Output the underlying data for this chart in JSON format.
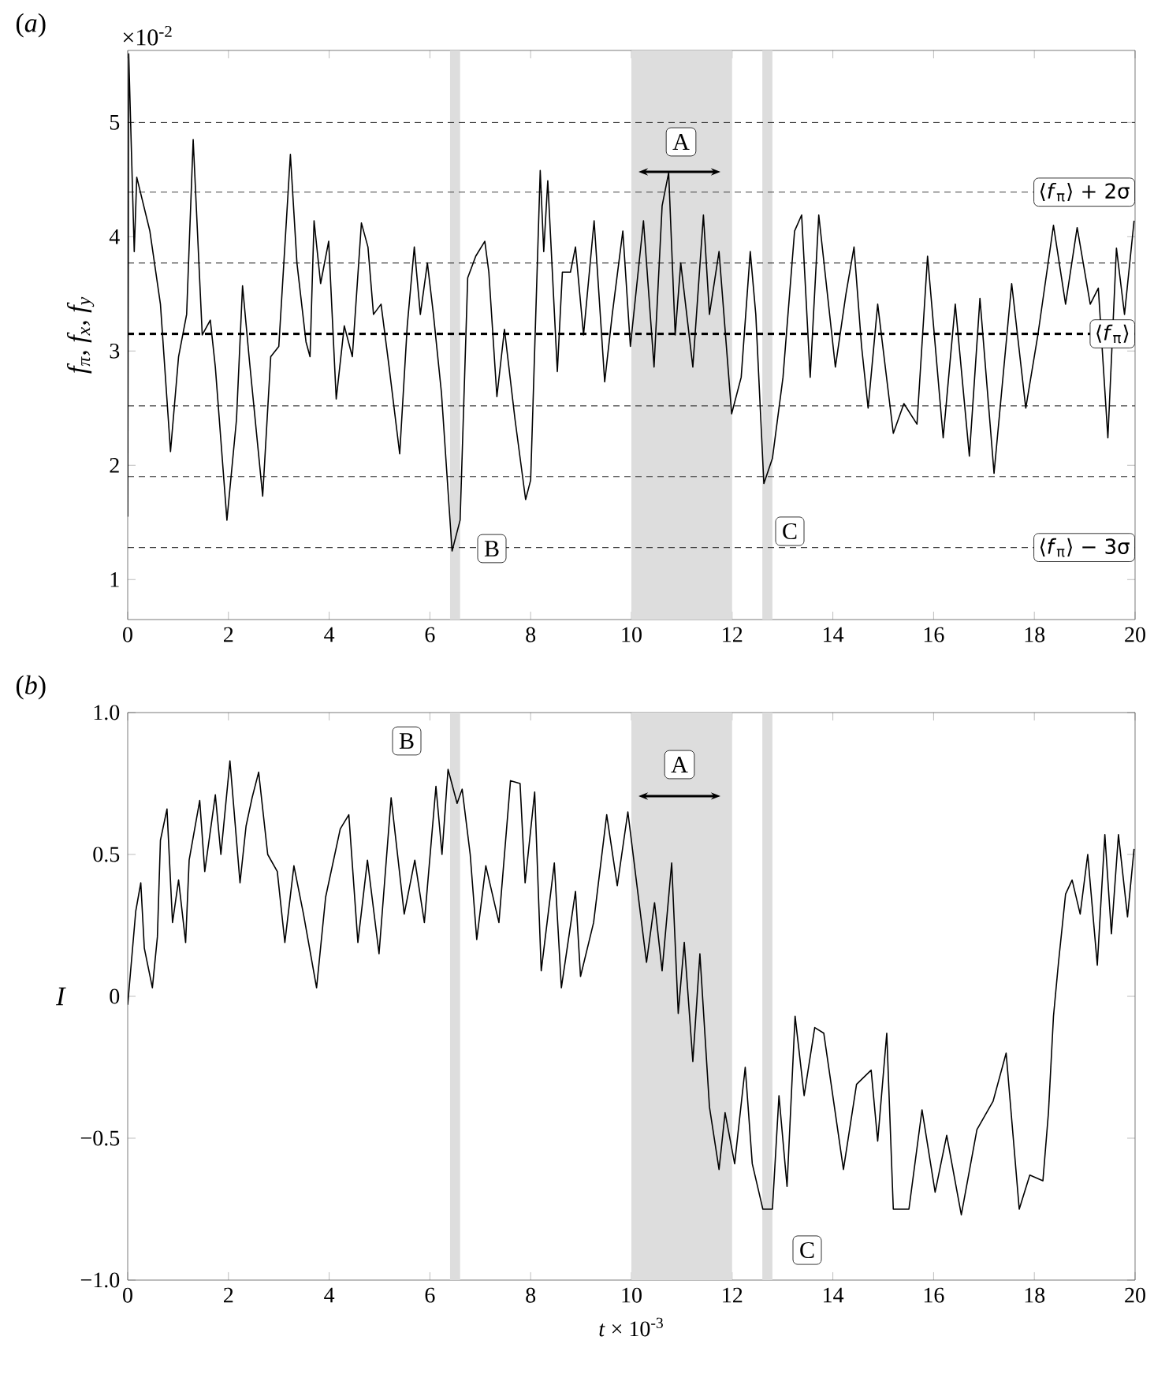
{
  "chart_data": [
    {
      "type": "line",
      "title": "(*a*)",
      "ylabel": "*f*$_{π}$, *f*$_{x}$, *f*$_{y}$",
      "annotations": [
        "×10$^{-2}$",
        "A",
        "B",
        "C"
      ],
      "x": [
        0,
        0.02,
        0.13,
        0.18,
        0.44,
        0.65,
        0.85,
        1.01,
        1.17,
        1.3,
        1.48,
        1.64,
        1.74,
        1.97,
        2.16,
        2.28,
        2.42,
        2.68,
        2.84,
        3.0,
        3.23,
        3.36,
        3.54,
        3.62,
        3.7,
        3.83,
        3.99,
        4.14,
        4.3,
        4.46,
        4.64,
        4.77,
        4.88,
        5.03,
        5.19,
        5.4,
        5.55,
        5.69,
        5.81,
        5.95,
        6.07,
        6.23,
        6.44,
        6.6,
        6.75,
        6.91,
        7.09,
        7.17,
        7.33,
        7.48,
        7.69,
        7.9,
        8.0,
        8.19,
        8.26,
        8.34,
        8.53,
        8.63,
        8.79,
        8.89,
        9.05,
        9.26,
        9.47,
        9.62,
        9.83,
        9.98,
        10.24,
        10.45,
        10.61,
        10.74,
        10.87,
        10.98,
        11.22,
        11.43,
        11.55,
        11.74,
        11.99,
        12.18,
        12.36,
        12.47,
        12.63,
        12.8,
        13.01,
        13.24,
        13.38,
        13.55,
        13.72,
        14.05,
        14.26,
        14.42,
        14.57,
        14.7,
        14.89,
        15.2,
        15.41,
        15.67,
        15.88,
        16.19,
        16.43,
        16.71,
        16.92,
        17.2,
        17.55,
        17.83,
        18.07,
        18.38,
        18.62,
        18.85,
        19.11,
        19.27,
        19.46,
        19.63,
        19.79,
        19.98
      ],
      "series": [
        {
          "color": "#000000",
          "values": [
            1.55,
            5.6,
            3.87,
            4.52,
            4.05,
            3.41,
            2.12,
            2.95,
            3.32,
            4.85,
            3.14,
            3.27,
            2.86,
            1.52,
            2.4,
            3.57,
            2.9,
            1.73,
            2.95,
            3.04,
            4.72,
            3.77,
            3.08,
            2.95,
            4.14,
            3.59,
            3.96,
            2.58,
            3.22,
            2.95,
            4.12,
            3.91,
            3.32,
            3.41,
            2.86,
            2.1,
            3.22,
            3.91,
            3.32,
            3.77,
            3.32,
            2.63,
            1.25,
            1.52,
            3.64,
            3.83,
            3.96,
            3.69,
            2.6,
            3.19,
            2.4,
            1.7,
            1.87,
            4.58,
            3.87,
            4.49,
            2.82,
            3.69,
            3.69,
            3.91,
            3.14,
            4.14,
            2.73,
            3.32,
            4.05,
            3.04,
            4.14,
            2.86,
            4.27,
            4.56,
            3.14,
            3.77,
            2.86,
            4.19,
            3.32,
            3.87,
            2.45,
            2.77,
            3.87,
            3.32,
            1.84,
            2.06,
            2.77,
            4.05,
            4.19,
            2.77,
            4.19,
            2.86,
            3.5,
            3.91,
            3.04,
            2.5,
            3.41,
            2.28,
            2.54,
            2.36,
            3.83,
            2.24,
            3.41,
            2.08,
            3.46,
            1.93,
            3.59,
            2.5,
            3.14,
            4.1,
            3.41,
            4.08,
            3.41,
            3.55,
            2.24,
            3.9,
            3.32,
            4.14
          ]
        }
      ],
      "xlim": [
        0,
        20
      ],
      "xticks": [
        0,
        2,
        4,
        6,
        8,
        10,
        12,
        14,
        16,
        18,
        20
      ],
      "ylim": [
        0.65,
        5.63
      ],
      "yticks": [
        1,
        2,
        3,
        4,
        5
      ],
      "marker": "none",
      "line_style": "solid",
      "ref_lines": [
        {
          "axis": "y",
          "value": 5.0,
          "line_style": "dashed"
        },
        {
          "axis": "y",
          "value": 4.39,
          "label": "⟨*f*$_{π}$⟩ + 2σ",
          "line_style": "dashed"
        },
        {
          "axis": "y",
          "value": 3.77,
          "line_style": "dashed"
        },
        {
          "axis": "y",
          "value": 3.15,
          "label": "⟨*f*$_{π}$⟩",
          "line_style": "dashed",
          "color": "#000000"
        },
        {
          "axis": "y",
          "value": 2.52,
          "line_style": "dashed"
        },
        {
          "axis": "y",
          "value": 1.9,
          "line_style": "dashed"
        },
        {
          "axis": "y",
          "value": 1.28,
          "label": "⟨*f*$_{π}$⟩ − 3σ",
          "line_style": "dashed"
        }
      ],
      "bands": [
        {
          "axis": "x",
          "from": 6.4,
          "to": 6.6,
          "color": "#dddddd"
        },
        {
          "axis": "x",
          "from": 10.0,
          "to": 12.0,
          "color": "#dddddd"
        },
        {
          "axis": "x",
          "from": 12.6,
          "to": 12.8,
          "color": "#dddddd"
        }
      ]
    },
    {
      "type": "line",
      "title": "(*b*)",
      "ylabel": "I",
      "xlabel": "*t* × 10$^{-3}$",
      "annotations": [
        "A",
        "B",
        "C"
      ],
      "x": [
        0,
        0.16,
        0.26,
        0.33,
        0.49,
        0.59,
        0.65,
        0.78,
        0.89,
        1.01,
        1.15,
        1.22,
        1.43,
        1.53,
        1.74,
        1.85,
        2.03,
        2.23,
        2.35,
        2.47,
        2.6,
        2.78,
        2.97,
        3.12,
        3.3,
        3.49,
        3.75,
        3.93,
        4.22,
        4.39,
        4.57,
        4.76,
        4.99,
        5.23,
        5.49,
        5.7,
        5.89,
        6.12,
        6.24,
        6.36,
        6.54,
        6.64,
        6.8,
        6.93,
        7.11,
        7.37,
        7.6,
        7.79,
        7.89,
        8.08,
        8.21,
        8.47,
        8.61,
        8.89,
        8.99,
        9.25,
        9.51,
        9.72,
        9.93,
        10.09,
        10.3,
        10.46,
        10.61,
        10.8,
        10.93,
        11.05,
        11.22,
        11.36,
        11.55,
        11.74,
        11.86,
        12.05,
        12.26,
        12.4,
        12.61,
        12.8,
        12.93,
        13.09,
        13.25,
        13.43,
        13.64,
        13.82,
        14.21,
        14.47,
        14.76,
        14.89,
        15.07,
        15.2,
        15.51,
        15.77,
        16.03,
        16.26,
        16.55,
        16.86,
        17.18,
        17.44,
        17.7,
        17.91,
        18.17,
        18.28,
        18.38,
        18.48,
        18.62,
        18.75,
        18.91,
        19.06,
        19.25,
        19.4,
        19.53,
        19.67,
        19.85,
        19.98
      ],
      "series": [
        {
          "color": "#000000",
          "values": [
            -0.03,
            0.3,
            0.4,
            0.17,
            0.03,
            0.21,
            0.55,
            0.66,
            0.26,
            0.41,
            0.19,
            0.48,
            0.69,
            0.44,
            0.71,
            0.5,
            0.83,
            0.4,
            0.6,
            0.7,
            0.79,
            0.5,
            0.44,
            0.19,
            0.46,
            0.29,
            0.03,
            0.35,
            0.59,
            0.64,
            0.19,
            0.48,
            0.15,
            0.7,
            0.29,
            0.48,
            0.26,
            0.74,
            0.5,
            0.8,
            0.68,
            0.73,
            0.5,
            0.2,
            0.46,
            0.26,
            0.76,
            0.75,
            0.4,
            0.72,
            0.09,
            0.47,
            0.03,
            0.37,
            0.07,
            0.26,
            0.64,
            0.39,
            0.65,
            0.42,
            0.12,
            0.33,
            0.09,
            0.47,
            -0.06,
            0.19,
            -0.23,
            0.15,
            -0.39,
            -0.61,
            -0.41,
            -0.59,
            -0.25,
            -0.59,
            -0.75,
            -0.75,
            -0.35,
            -0.67,
            -0.07,
            -0.35,
            -0.11,
            -0.13,
            -0.61,
            -0.31,
            -0.26,
            -0.51,
            -0.13,
            -0.75,
            -0.75,
            -0.4,
            -0.69,
            -0.49,
            -0.77,
            -0.47,
            -0.37,
            -0.2,
            -0.75,
            -0.63,
            -0.65,
            -0.41,
            -0.07,
            0.12,
            0.36,
            0.41,
            0.29,
            0.5,
            0.11,
            0.57,
            0.22,
            0.57,
            0.28,
            0.52
          ]
        }
      ],
      "xlim": [
        0,
        20
      ],
      "xticks": [
        0,
        2,
        4,
        6,
        8,
        10,
        12,
        14,
        16,
        18,
        20
      ],
      "ylim": [
        -1.0,
        1.0
      ],
      "yticks": [
        {
          "value": -1.0,
          "label": "−1.0"
        },
        {
          "value": -0.5,
          "label": "−0.5"
        },
        0,
        0.5,
        {
          "value": 1.0,
          "label": "1.0"
        }
      ],
      "marker": "none",
      "line_style": "solid",
      "bands": [
        {
          "axis": "x",
          "from": 6.4,
          "to": 6.6,
          "color": "#dddddd"
        },
        {
          "axis": "x",
          "from": 10.0,
          "to": 12.0,
          "color": "#dddddd"
        },
        {
          "axis": "x",
          "from": 12.6,
          "to": 12.8,
          "color": "#dddddd"
        }
      ]
    }
  ]
}
